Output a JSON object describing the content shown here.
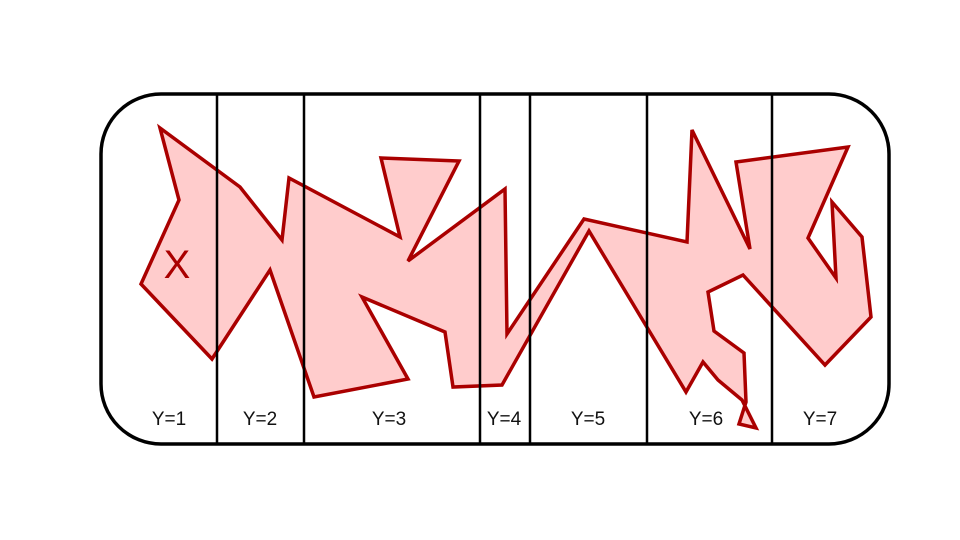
{
  "colors": {
    "frame": "#000000",
    "shape_fill": "#ffcccc",
    "shape_stroke": "#aa0000",
    "marker": "#aa0000",
    "label": "#111111"
  },
  "zones": [
    {
      "label": "Y=1"
    },
    {
      "label": "Y=2"
    },
    {
      "label": "Y=3"
    },
    {
      "label": "Y=4"
    },
    {
      "label": "Y=5"
    },
    {
      "label": "Y=6"
    },
    {
      "label": "Y=7"
    }
  ],
  "marker": {
    "label": "X"
  }
}
